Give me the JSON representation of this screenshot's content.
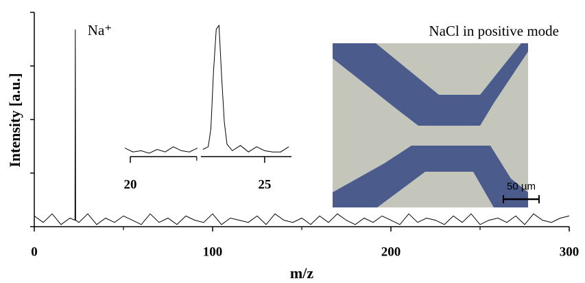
{
  "chart_data": [
    {
      "type": "line",
      "title": "NaCl in positive mode",
      "xlabel": "m/z",
      "ylabel": "Intensity [a.u.]",
      "annotation": "Na⁺",
      "annotation_x": 23,
      "color": "#000000",
      "x": [
        0,
        5,
        10,
        15,
        20,
        22.8,
        23,
        23.2,
        25,
        30,
        35,
        40,
        45,
        50,
        55,
        60,
        65,
        70,
        75,
        80,
        85,
        90,
        95,
        100,
        105,
        110,
        115,
        120,
        125,
        130,
        135,
        140,
        145,
        150,
        155,
        160,
        165,
        170,
        175,
        180,
        185,
        190,
        195,
        200,
        205,
        210,
        215,
        220,
        225,
        230,
        235,
        240,
        245,
        250,
        255,
        260,
        265,
        270,
        275,
        280,
        285,
        290,
        295,
        300
      ],
      "values": [
        5,
        2,
        6,
        1,
        4,
        3,
        92,
        3,
        2,
        6,
        1,
        4,
        2,
        5,
        3,
        1,
        6,
        2,
        4,
        1,
        5,
        3,
        2,
        6,
        1,
        4,
        3,
        2,
        5,
        1,
        6,
        3,
        2,
        4,
        1,
        5,
        2,
        6,
        3,
        1,
        4,
        2,
        5,
        3,
        1,
        6,
        2,
        4,
        3,
        1,
        5,
        2,
        6,
        1,
        3,
        4,
        2,
        5,
        1,
        6,
        3,
        2,
        4,
        5
      ],
      "xlim": [
        0,
        300
      ],
      "xticks": [
        0,
        100,
        200,
        300
      ],
      "minor_xticks": [
        50,
        150,
        250
      ],
      "ylim": [
        0,
        100
      ],
      "yticks": [
        0,
        25,
        50,
        75,
        100
      ]
    },
    {
      "type": "line",
      "color": "#000000",
      "x": [
        19.8,
        20.1,
        20.4,
        20.7,
        21,
        21.3,
        21.6,
        21.9,
        22.2,
        22.5,
        22.55,
        22.7,
        22.9,
        23.0,
        23.1,
        23.2,
        23.3,
        23.4,
        23.5,
        23.6,
        23.8,
        24.1,
        24.4,
        24.7,
        25,
        25.3,
        25.6,
        25.9
      ],
      "values": [
        5,
        2,
        3,
        1,
        4,
        2,
        6,
        3,
        2,
        5,
        null,
        4,
        6,
        20,
        65,
        97,
        100,
        60,
        25,
        8,
        3,
        7,
        2,
        6,
        3,
        2,
        2,
        6
      ],
      "xlim": [
        20,
        26
      ],
      "xticks": [
        20,
        25
      ],
      "ylim": [
        0,
        100
      ],
      "axis_break": 22.55
    },
    {
      "type": "image",
      "scale_bar": "50 µm"
    }
  ]
}
